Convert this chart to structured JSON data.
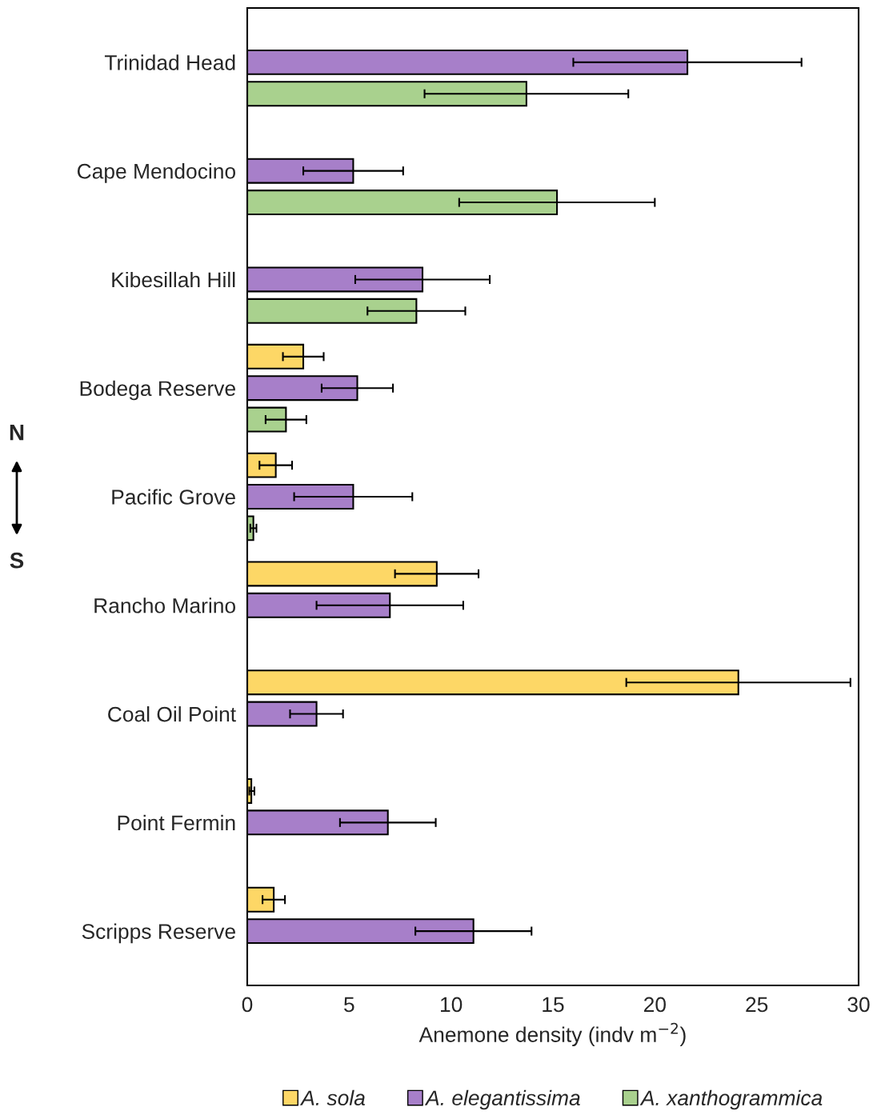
{
  "chart_data": {
    "type": "bar",
    "orientation": "horizontal",
    "xlabel": "Anemone density (indv m$^{−2}$)",
    "categories": [
      "Trinidad Head",
      "Cape Mendocino",
      "Kibesillah Hill",
      "Bodega Reserve",
      "Pacific Grove",
      "Rancho Marino",
      "Coal Oil Point",
      "Point Fermin",
      "Scripps Reserve"
    ],
    "series": [
      {
        "name": "A. sola",
        "color": "#fdd766",
        "values": [
          null,
          null,
          null,
          2.75,
          1.4,
          9.3,
          24.1,
          0.2,
          1.3
        ],
        "errors": [
          null,
          null,
          null,
          1.0,
          0.8,
          2.05,
          5.5,
          [
            0.1,
            0.35
          ],
          0.55
        ]
      },
      {
        "name": "A. elegantissima",
        "color": "#a77fc9",
        "values": [
          21.6,
          5.2,
          8.6,
          5.4,
          5.2,
          7.0,
          3.4,
          6.9,
          11.1
        ],
        "errors": [
          5.6,
          2.45,
          3.3,
          1.75,
          2.9,
          3.6,
          1.3,
          2.35,
          2.85
        ]
      },
      {
        "name": "A. xanthogrammica",
        "color": "#a9d18e",
        "values": [
          13.7,
          15.2,
          8.3,
          1.9,
          0.3,
          null,
          null,
          null,
          null
        ],
        "errors": [
          5.0,
          4.8,
          2.4,
          1.0,
          0.15,
          null,
          null,
          null,
          null
        ]
      }
    ],
    "xlim": [
      0,
      30
    ],
    "xticks": [
      0,
      5,
      10,
      15,
      20,
      25,
      30
    ],
    "grid": false,
    "legend": "bottom",
    "annotations": [
      "N",
      "S"
    ]
  }
}
